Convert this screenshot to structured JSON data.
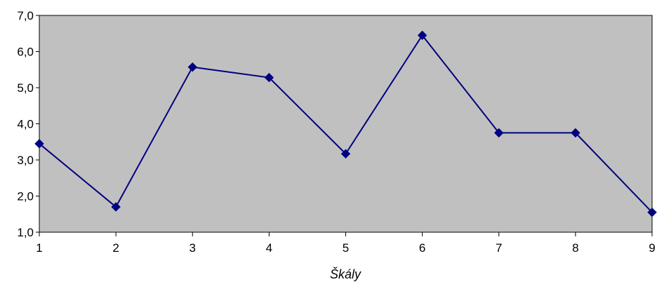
{
  "chart_data": {
    "type": "line",
    "title": "",
    "xlabel": "Škály",
    "ylabel": "",
    "x": [
      1,
      2,
      3,
      4,
      5,
      6,
      7,
      8,
      9
    ],
    "xtick_labels": [
      "1",
      "2",
      "3",
      "4",
      "5",
      "6",
      "7",
      "8",
      "9"
    ],
    "series": [
      {
        "values": [
          3.45,
          1.7,
          5.57,
          5.28,
          3.17,
          6.45,
          3.75,
          3.75,
          1.55
        ],
        "color": "#000080",
        "marker": "diamond"
      }
    ],
    "ylim": [
      1.0,
      7.0
    ],
    "yticks": [
      1.0,
      2.0,
      3.0,
      4.0,
      5.0,
      6.0,
      7.0
    ],
    "ytick_labels": [
      "1,0",
      "2,0",
      "3,0",
      "4,0",
      "5,0",
      "6,0",
      "7,0"
    ],
    "xlim": [
      1,
      9
    ],
    "grid": false,
    "legend": "none",
    "plot_background": "#c0c0c0",
    "axis_color": "#000000"
  }
}
